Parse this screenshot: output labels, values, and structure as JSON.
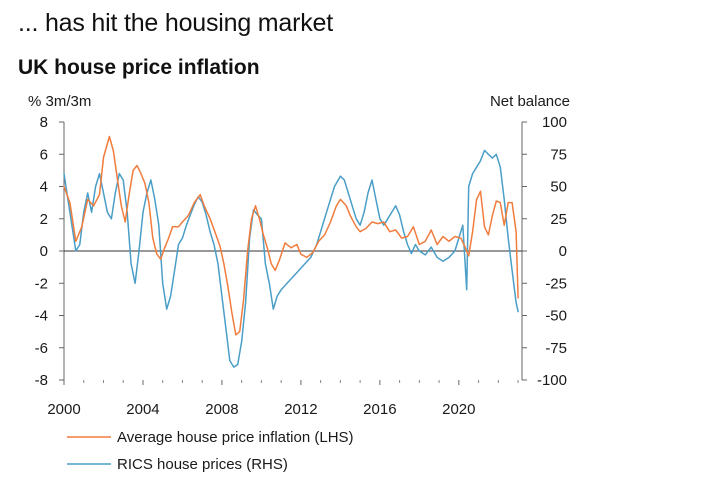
{
  "headline": "... has hit the housing market",
  "chart_data": {
    "type": "line",
    "title": "UK house price inflation",
    "ylabel_left": "% 3m/3m",
    "ylabel_right": "Net balance",
    "xlim": [
      2000,
      2023.2
    ],
    "ylim_left": [
      -8,
      8
    ],
    "ylim_right": [
      -100,
      100
    ],
    "x_ticks": [
      2000,
      2004,
      2008,
      2012,
      2016,
      2020
    ],
    "x_tick_labels": [
      "2000",
      "2004",
      "2008",
      "2012",
      "2016",
      "2020"
    ],
    "y_left_ticks": [
      8,
      6,
      4,
      2,
      0,
      -2,
      -4,
      -6,
      -8
    ],
    "y_left_tick_labels": [
      "8",
      "6",
      "4",
      "2",
      "0",
      "-2",
      "-4",
      "-6",
      "-8"
    ],
    "y_right_ticks": [
      100,
      75,
      50,
      25,
      0,
      -25,
      -50,
      -75,
      -100
    ],
    "y_right_tick_labels": [
      "100",
      "75",
      "50",
      "25",
      "0",
      "-25",
      "-50",
      "-75",
      "-100"
    ],
    "grid": false,
    "zero_line": true,
    "legend_position": "bottom-left",
    "series": [
      {
        "name": "Average house price inflation (LHS)",
        "axis": "left",
        "color": "#f07c3e",
        "x": [
          2000.0,
          2000.3,
          2000.6,
          2000.9,
          2001.2,
          2001.5,
          2001.8,
          2002.0,
          2002.3,
          2002.5,
          2002.7,
          2002.9,
          2003.1,
          2003.3,
          2003.5,
          2003.7,
          2003.9,
          2004.1,
          2004.3,
          2004.5,
          2004.7,
          2004.9,
          2005.1,
          2005.3,
          2005.5,
          2005.8,
          2006.0,
          2006.3,
          2006.6,
          2006.9,
          2007.1,
          2007.4,
          2007.7,
          2007.9,
          2008.1,
          2008.3,
          2008.5,
          2008.7,
          2008.9,
          2009.1,
          2009.3,
          2009.5,
          2009.7,
          2009.9,
          2010.1,
          2010.3,
          2010.5,
          2010.7,
          2010.9,
          2011.2,
          2011.5,
          2011.8,
          2012.0,
          2012.3,
          2012.6,
          2012.9,
          2013.2,
          2013.5,
          2013.8,
          2014.0,
          2014.3,
          2014.5,
          2014.8,
          2015.0,
          2015.3,
          2015.6,
          2015.9,
          2016.2,
          2016.5,
          2016.8,
          2017.1,
          2017.4,
          2017.7,
          2018.0,
          2018.3,
          2018.6,
          2018.9,
          2019.2,
          2019.5,
          2019.8,
          2020.1,
          2020.3,
          2020.5,
          2020.7,
          2020.9,
          2021.1,
          2021.3,
          2021.5,
          2021.7,
          2021.9,
          2022.1,
          2022.3,
          2022.5,
          2022.7,
          2022.9,
          2023.0
        ],
        "values": [
          4.0,
          3.0,
          0.6,
          1.5,
          3.2,
          2.8,
          3.5,
          5.8,
          7.1,
          6.2,
          4.5,
          2.8,
          1.8,
          3.5,
          5.0,
          5.3,
          4.8,
          4.2,
          3.0,
          0.8,
          -0.2,
          -0.5,
          0.2,
          0.8,
          1.5,
          1.5,
          1.8,
          2.2,
          3.0,
          3.5,
          2.8,
          2.0,
          1.0,
          0.3,
          -0.8,
          -2.2,
          -3.8,
          -5.2,
          -5.0,
          -3.0,
          0.0,
          2.0,
          2.8,
          2.0,
          1.0,
          0.2,
          -0.8,
          -1.2,
          -0.6,
          0.5,
          0.2,
          0.4,
          -0.2,
          -0.4,
          -0.1,
          0.6,
          1.0,
          1.8,
          2.8,
          3.2,
          2.8,
          2.2,
          1.5,
          1.2,
          1.4,
          1.8,
          1.7,
          1.8,
          1.2,
          1.3,
          0.8,
          0.9,
          1.5,
          0.4,
          0.6,
          1.3,
          0.4,
          0.9,
          0.6,
          0.9,
          0.8,
          0.3,
          -0.3,
          1.2,
          3.2,
          3.7,
          1.5,
          1.0,
          2.2,
          3.1,
          3.0,
          1.6,
          3.0,
          3.0,
          1.2,
          -2.9
        ],
        "y_units": "% 3m/3m"
      },
      {
        "name": "RICS house prices (RHS)",
        "axis": "right",
        "color": "#4a9ec7",
        "x": [
          2000.0,
          2000.2,
          2000.4,
          2000.6,
          2000.8,
          2001.0,
          2001.2,
          2001.4,
          2001.6,
          2001.8,
          2002.0,
          2002.2,
          2002.4,
          2002.6,
          2002.8,
          2003.0,
          2003.2,
          2003.4,
          2003.6,
          2003.8,
          2004.0,
          2004.2,
          2004.4,
          2004.6,
          2004.8,
          2005.0,
          2005.2,
          2005.4,
          2005.6,
          2005.8,
          2006.0,
          2006.2,
          2006.4,
          2006.6,
          2006.8,
          2007.0,
          2007.2,
          2007.4,
          2007.6,
          2007.8,
          2008.0,
          2008.2,
          2008.4,
          2008.6,
          2008.8,
          2009.0,
          2009.2,
          2009.4,
          2009.6,
          2009.8,
          2010.0,
          2010.2,
          2010.4,
          2010.6,
          2010.8,
          2011.0,
          2011.3,
          2011.6,
          2011.9,
          2012.2,
          2012.5,
          2012.8,
          2013.1,
          2013.4,
          2013.7,
          2014.0,
          2014.2,
          2014.4,
          2014.6,
          2014.8,
          2015.0,
          2015.2,
          2015.4,
          2015.6,
          2015.8,
          2016.0,
          2016.2,
          2016.4,
          2016.6,
          2016.8,
          2017.0,
          2017.2,
          2017.4,
          2017.6,
          2017.8,
          2018.0,
          2018.3,
          2018.6,
          2018.9,
          2019.2,
          2019.5,
          2019.8,
          2020.0,
          2020.2,
          2020.4,
          2020.5,
          2020.7,
          2020.9,
          2021.1,
          2021.3,
          2021.5,
          2021.7,
          2021.9,
          2022.1,
          2022.3,
          2022.5,
          2022.7,
          2022.9,
          2023.0
        ],
        "values": [
          60,
          40,
          20,
          0,
          5,
          30,
          45,
          30,
          50,
          60,
          45,
          30,
          25,
          45,
          60,
          55,
          30,
          -10,
          -25,
          0,
          30,
          45,
          55,
          40,
          20,
          -25,
          -45,
          -35,
          -15,
          5,
          10,
          20,
          28,
          36,
          42,
          38,
          28,
          15,
          5,
          -10,
          -35,
          -60,
          -85,
          -90,
          -88,
          -70,
          -40,
          10,
          32,
          28,
          25,
          -10,
          -25,
          -45,
          -35,
          -30,
          -25,
          -20,
          -15,
          -10,
          -5,
          5,
          20,
          35,
          50,
          58,
          55,
          45,
          35,
          25,
          20,
          30,
          45,
          55,
          40,
          25,
          20,
          25,
          30,
          35,
          28,
          15,
          5,
          -2,
          5,
          0,
          -3,
          3,
          -5,
          -8,
          -5,
          0,
          10,
          20,
          -30,
          50,
          60,
          65,
          70,
          78,
          75,
          72,
          75,
          65,
          40,
          10,
          -15,
          -40,
          -47
        ],
        "y_units": "Net balance"
      }
    ]
  }
}
